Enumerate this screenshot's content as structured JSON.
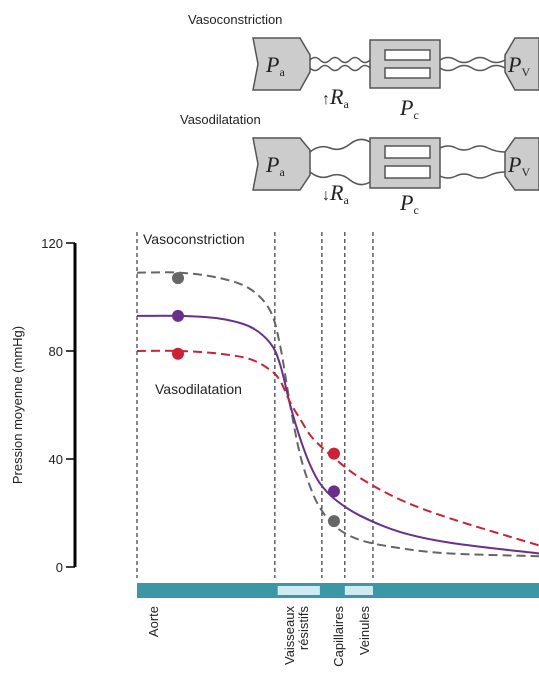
{
  "diagram": {
    "top_label": "Vasoconstriction",
    "bottom_label": "Vasodilatation",
    "pa": {
      "symbol": "P",
      "sub": "a"
    },
    "pv": {
      "symbol": "P",
      "sub": "V"
    },
    "pc": {
      "symbol": "P",
      "sub": "c"
    },
    "ra_up": {
      "arrow": "↑",
      "symbol": "R",
      "sub": "a"
    },
    "ra_down": {
      "arrow": "↓",
      "symbol": "R",
      "sub": "a"
    }
  },
  "chart_data": {
    "type": "line",
    "ylabel": "Pression moyenne (mmHg)",
    "ylim": [
      0,
      120
    ],
    "yticks": [
      0,
      40,
      80,
      120
    ],
    "xlim": [
      0,
      100
    ],
    "x": [
      0,
      10.7,
      20.6,
      28.1,
      33.1,
      35.6,
      38.1,
      40.5,
      43,
      45.5,
      49.3,
      55.5,
      65.4,
      77.9,
      100
    ],
    "series": [
      {
        "name": "Vasoconstriction",
        "color": "#666666",
        "dash": true,
        "values": [
          109,
          109,
          107,
          103,
          95,
          82,
          60,
          42,
          30,
          22,
          15,
          10,
          7,
          5,
          4
        ],
        "marker_x": [
          10.2,
          49
        ],
        "marker_values": [
          107,
          17
        ]
      },
      {
        "color": "#6a2f8a",
        "dash": false,
        "values": [
          93,
          93,
          92,
          89,
          83,
          75,
          60,
          48,
          38,
          31,
          25,
          19,
          13,
          9,
          5
        ],
        "marker_x": [
          10.2,
          49
        ],
        "marker_values": [
          93,
          28
        ]
      },
      {
        "name": "Vasodilatation",
        "color": "#cc2233",
        "dash": true,
        "values": [
          80,
          80,
          79,
          77,
          73,
          69,
          61,
          55,
          49,
          45,
          40,
          33,
          25,
          18,
          8
        ],
        "marker_x": [
          10.2,
          49
        ],
        "marker_values": [
          79,
          42
        ]
      }
    ],
    "dividers": [
      0,
      34.3,
      46,
      51.7,
      58.7
    ],
    "regions": [
      {
        "lines": [
          "Aorte"
        ],
        "x": 4,
        "highlight": false
      },
      {
        "lines": [
          "Vaisseaux",
          "résistifs"
        ],
        "x": 39.5,
        "start": 35,
        "end": 45.5,
        "highlight": true
      },
      {
        "lines": [
          "Capillaires"
        ],
        "x": 50,
        "highlight": false
      },
      {
        "lines": [
          "Veinules"
        ],
        "x": 56.5,
        "start": 51.7,
        "end": 58.7,
        "highlight": true
      }
    ],
    "bar_color": "#3a98a6",
    "highlight_color": "#cfeaf0"
  }
}
